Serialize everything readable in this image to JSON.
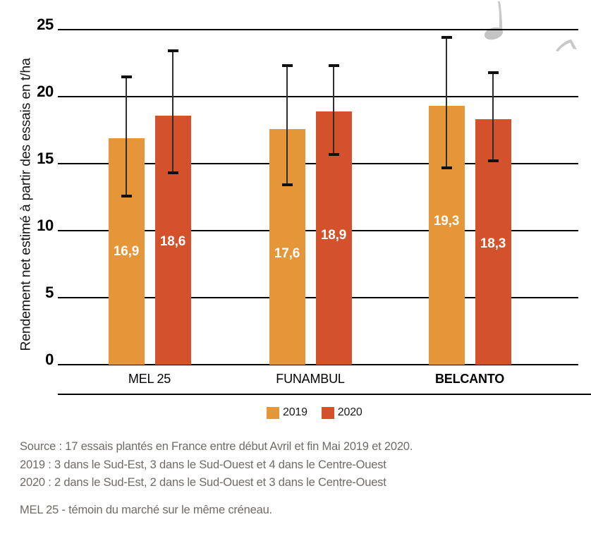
{
  "chart_data": {
    "type": "bar",
    "title": "",
    "xlabel": "",
    "ylabel": "Rendement net estimé à partir des essais en t/ha",
    "ylim": [
      0,
      25
    ],
    "yticks": [
      0,
      5,
      10,
      15,
      20,
      25
    ],
    "grid": true,
    "categories": [
      {
        "label": "MEL 25",
        "emphasis": false
      },
      {
        "label": "FUNAMBUL",
        "emphasis": false
      },
      {
        "label": "BELCANTO",
        "emphasis": true
      }
    ],
    "series": [
      {
        "name": "2019",
        "color": "#E59638",
        "values": [
          16.9,
          17.6,
          19.3
        ],
        "display_values": [
          "16,9",
          "17,6",
          "19,3"
        ],
        "error_hi": [
          21.5,
          22.3,
          24.4
        ],
        "error_lo": [
          12.6,
          13.4,
          14.7
        ]
      },
      {
        "name": "2020",
        "color": "#D4522B",
        "values": [
          18.6,
          18.9,
          18.3
        ],
        "display_values": [
          "18,6",
          "18,9",
          "18,3"
        ],
        "error_hi": [
          23.4,
          22.3,
          21.8
        ],
        "error_lo": [
          14.3,
          15.7,
          15.2
        ]
      }
    ],
    "legend": {
      "position": "bottom",
      "entries": [
        "2019",
        "2020"
      ]
    }
  },
  "footnotes": {
    "source_lines": [
      "Source : 17 essais plantés en France entre début Avril et fin Mai 2019 et 2020.",
      "2019 : 3 dans le Sud-Est, 3 dans le Sud-Ouest et 4 dans le Centre-Ouest",
      "2020 : 2 dans le Sud-Est, 2 dans le Sud-Ouest et 3 dans le Centre-Ouest"
    ],
    "note": "MEL 25 - témoin du marché sur le même créneau."
  },
  "decorations": {
    "color": "#C8C8C8",
    "icons": [
      "musical-note-icon",
      "musical-note-flag-icon"
    ]
  }
}
